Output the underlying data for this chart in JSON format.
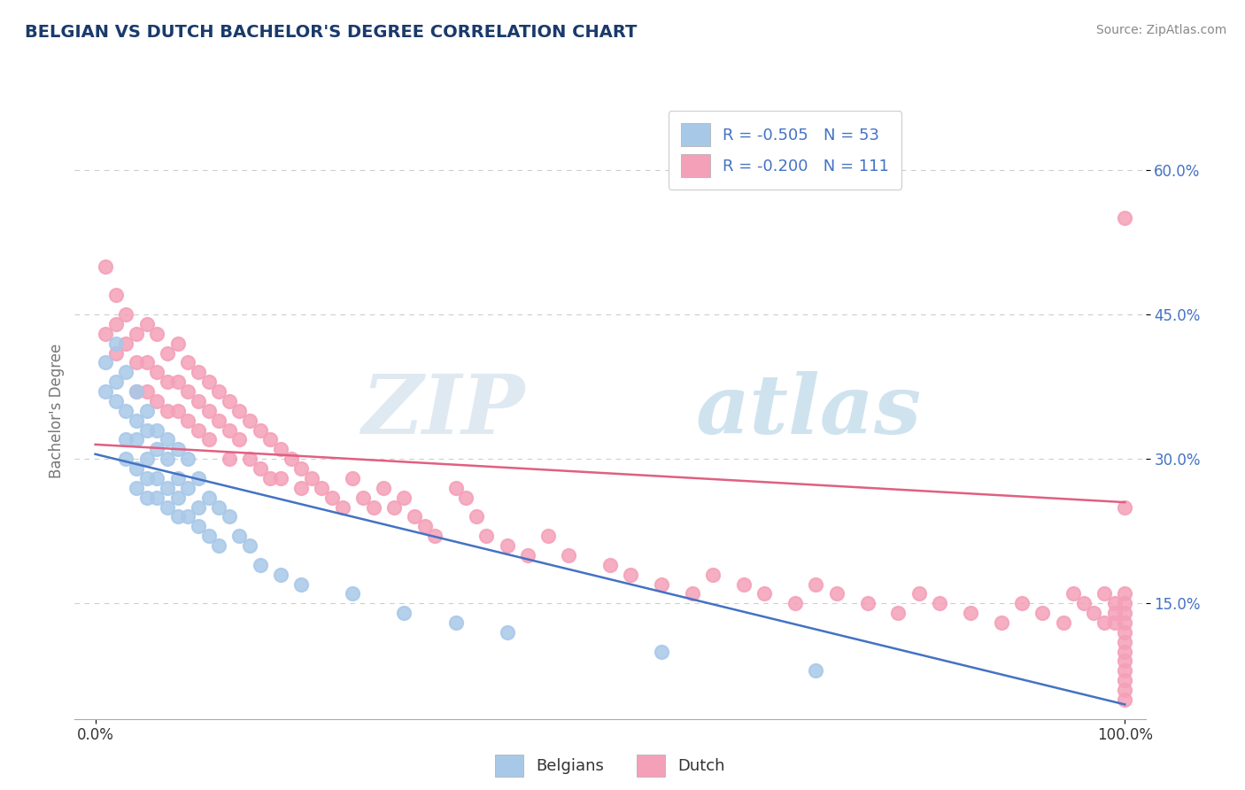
{
  "title": "BELGIAN VS DUTCH BACHELOR'S DEGREE CORRELATION CHART",
  "source": "Source: ZipAtlas.com",
  "ylabel": "Bachelor's Degree",
  "xlim": [
    -0.02,
    1.02
  ],
  "ylim": [
    0.03,
    0.67
  ],
  "y_ticks": [
    0.15,
    0.3,
    0.45,
    0.6
  ],
  "y_tick_labels": [
    "15.0%",
    "30.0%",
    "45.0%",
    "60.0%"
  ],
  "belgian_color": "#a8c8e8",
  "dutch_color": "#f4a0b8",
  "belgian_line_color": "#4472c4",
  "dutch_line_color": "#e06080",
  "r_belgian": -0.505,
  "n_belgian": 53,
  "r_dutch": -0.2,
  "n_dutch": 111,
  "background_color": "#ffffff",
  "grid_color": "#c8c8c8",
  "title_color": "#1a3a6b",
  "axis_label_color": "#4472c4",
  "watermark": "ZIPatlas",
  "legend_label_1": "R = -0.505   N = 53",
  "legend_label_2": "R = -0.200   N = 111",
  "legend_bottom_1": "Belgians",
  "legend_bottom_2": "Dutch",
  "belgian_line_x0": 0.0,
  "belgian_line_y0": 0.305,
  "belgian_line_x1": 1.0,
  "belgian_line_y1": 0.045,
  "dutch_line_x0": 0.0,
  "dutch_line_y0": 0.315,
  "dutch_line_x1": 1.0,
  "dutch_line_y1": 0.255,
  "belgian_x": [
    0.01,
    0.01,
    0.02,
    0.02,
    0.02,
    0.03,
    0.03,
    0.03,
    0.03,
    0.04,
    0.04,
    0.04,
    0.04,
    0.04,
    0.05,
    0.05,
    0.05,
    0.05,
    0.05,
    0.06,
    0.06,
    0.06,
    0.06,
    0.07,
    0.07,
    0.07,
    0.07,
    0.08,
    0.08,
    0.08,
    0.08,
    0.09,
    0.09,
    0.09,
    0.1,
    0.1,
    0.1,
    0.11,
    0.11,
    0.12,
    0.12,
    0.13,
    0.14,
    0.15,
    0.16,
    0.18,
    0.2,
    0.25,
    0.3,
    0.35,
    0.4,
    0.55,
    0.7
  ],
  "belgian_y": [
    0.4,
    0.37,
    0.42,
    0.38,
    0.36,
    0.39,
    0.35,
    0.32,
    0.3,
    0.37,
    0.34,
    0.32,
    0.29,
    0.27,
    0.35,
    0.33,
    0.3,
    0.28,
    0.26,
    0.33,
    0.31,
    0.28,
    0.26,
    0.32,
    0.3,
    0.27,
    0.25,
    0.31,
    0.28,
    0.26,
    0.24,
    0.3,
    0.27,
    0.24,
    0.28,
    0.25,
    0.23,
    0.26,
    0.22,
    0.25,
    0.21,
    0.24,
    0.22,
    0.21,
    0.19,
    0.18,
    0.17,
    0.16,
    0.14,
    0.13,
    0.12,
    0.1,
    0.08
  ],
  "dutch_x": [
    0.01,
    0.01,
    0.02,
    0.02,
    0.02,
    0.03,
    0.03,
    0.04,
    0.04,
    0.04,
    0.05,
    0.05,
    0.05,
    0.06,
    0.06,
    0.06,
    0.07,
    0.07,
    0.07,
    0.08,
    0.08,
    0.08,
    0.09,
    0.09,
    0.09,
    0.1,
    0.1,
    0.1,
    0.11,
    0.11,
    0.11,
    0.12,
    0.12,
    0.13,
    0.13,
    0.13,
    0.14,
    0.14,
    0.15,
    0.15,
    0.16,
    0.16,
    0.17,
    0.17,
    0.18,
    0.18,
    0.19,
    0.2,
    0.2,
    0.21,
    0.22,
    0.23,
    0.24,
    0.25,
    0.26,
    0.27,
    0.28,
    0.29,
    0.3,
    0.31,
    0.32,
    0.33,
    0.35,
    0.36,
    0.37,
    0.38,
    0.4,
    0.42,
    0.44,
    0.46,
    0.5,
    0.52,
    0.55,
    0.58,
    0.6,
    0.63,
    0.65,
    0.68,
    0.7,
    0.72,
    0.75,
    0.78,
    0.8,
    0.82,
    0.85,
    0.88,
    0.9,
    0.92,
    0.94,
    0.95,
    0.96,
    0.97,
    0.98,
    0.98,
    0.99,
    0.99,
    0.99,
    1.0,
    1.0,
    1.0,
    1.0,
    1.0,
    1.0,
    1.0,
    1.0,
    1.0,
    1.0,
    1.0,
    1.0,
    1.0,
    1.0
  ],
  "dutch_y": [
    0.5,
    0.43,
    0.47,
    0.44,
    0.41,
    0.45,
    0.42,
    0.43,
    0.4,
    0.37,
    0.44,
    0.4,
    0.37,
    0.43,
    0.39,
    0.36,
    0.41,
    0.38,
    0.35,
    0.42,
    0.38,
    0.35,
    0.4,
    0.37,
    0.34,
    0.39,
    0.36,
    0.33,
    0.38,
    0.35,
    0.32,
    0.37,
    0.34,
    0.36,
    0.33,
    0.3,
    0.35,
    0.32,
    0.34,
    0.3,
    0.33,
    0.29,
    0.32,
    0.28,
    0.31,
    0.28,
    0.3,
    0.29,
    0.27,
    0.28,
    0.27,
    0.26,
    0.25,
    0.28,
    0.26,
    0.25,
    0.27,
    0.25,
    0.26,
    0.24,
    0.23,
    0.22,
    0.27,
    0.26,
    0.24,
    0.22,
    0.21,
    0.2,
    0.22,
    0.2,
    0.19,
    0.18,
    0.17,
    0.16,
    0.18,
    0.17,
    0.16,
    0.15,
    0.17,
    0.16,
    0.15,
    0.14,
    0.16,
    0.15,
    0.14,
    0.13,
    0.15,
    0.14,
    0.13,
    0.16,
    0.15,
    0.14,
    0.13,
    0.16,
    0.15,
    0.14,
    0.13,
    0.16,
    0.15,
    0.14,
    0.13,
    0.12,
    0.25,
    0.11,
    0.1,
    0.09,
    0.08,
    0.07,
    0.06,
    0.05,
    0.55
  ]
}
